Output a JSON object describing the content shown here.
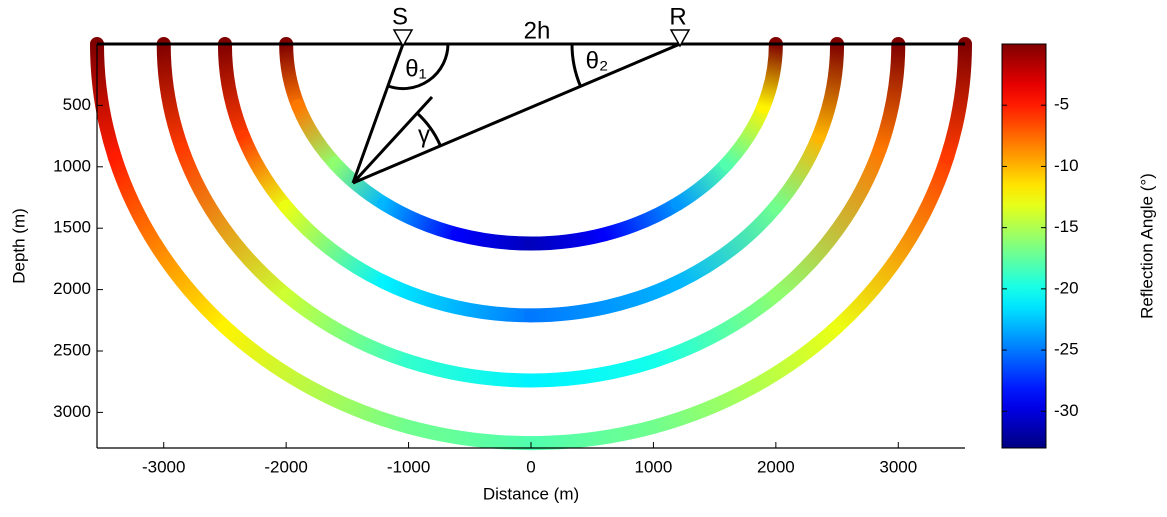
{
  "chart_data": {
    "type": "colored-isochrons",
    "xlabel": "Distance (m)",
    "ylabel": "Depth (m)",
    "xlim": [
      -3545,
      3545
    ],
    "ylim": [
      0,
      3290
    ],
    "y_inverted": true,
    "xticks": [
      -3000,
      -2000,
      -1000,
      0,
      1000,
      2000,
      3000
    ],
    "yticks": [
      500,
      1000,
      1500,
      2000,
      2500,
      3000
    ],
    "series": [
      {
        "x_semi_axis": 2000,
        "depth_semi_axis": 1625,
        "x": [
          -2000,
          -1900,
          -1600,
          -1200,
          -600,
          0,
          600,
          1200,
          1600,
          1900,
          2000
        ],
        "values": [
          0,
          -8,
          -16,
          -23,
          -29,
          -31,
          -29,
          -24,
          -18,
          -12,
          0
        ]
      },
      {
        "x_semi_axis": 2500,
        "depth_semi_axis": 2210,
        "x": [
          -2500,
          -2350,
          -2000,
          -1200,
          0,
          1200,
          2000,
          2350,
          2500
        ],
        "values": [
          0,
          -6,
          -13,
          -21,
          -25,
          -23,
          -17,
          -10,
          0
        ]
      },
      {
        "x_semi_axis": 3000,
        "depth_semi_axis": 2740,
        "x": [
          -3000,
          -2850,
          -2000,
          -1000,
          0,
          1000,
          2000,
          2850,
          3000
        ],
        "values": [
          0,
          -6,
          -14,
          -19,
          -21,
          -20,
          -16,
          -8,
          0
        ]
      },
      {
        "x_semi_axis": 3545,
        "depth_semi_axis": 3250,
        "x": [
          -3545,
          -3400,
          -2500,
          -1000,
          0,
          1000,
          2500,
          3400,
          3545
        ],
        "values": [
          0,
          -5,
          -12,
          -17,
          -18,
          -17,
          -13,
          -6,
          0
        ]
      }
    ],
    "colorbar": {
      "label": "Reflection Angle (°)",
      "colormap": "jet",
      "lim": [
        -33,
        0
      ],
      "ticks": [
        -5,
        -10,
        -15,
        -20,
        -25,
        -30
      ]
    },
    "annotations": {
      "source": "S",
      "receiver": "R",
      "offset": "2h",
      "theta1": "θ₁",
      "theta2": "θ₂",
      "gamma": "γ"
    }
  }
}
